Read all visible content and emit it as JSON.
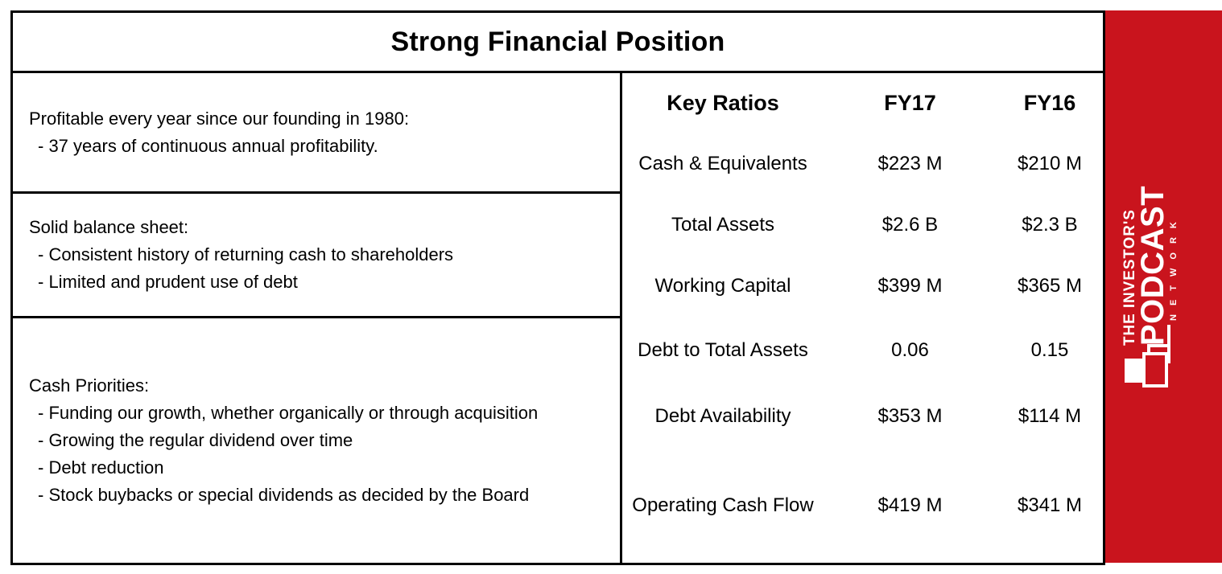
{
  "title": "Strong Financial Position",
  "left_sections": [
    {
      "heading": "Profitable every year since our founding in 1980:",
      "bullets": [
        "- 37 years of continuous annual profitability."
      ]
    },
    {
      "heading": "Solid balance sheet:",
      "bullets": [
        "- Consistent history of returning cash to shareholders",
        "- Limited and prudent use of debt"
      ]
    },
    {
      "heading": "Cash Priorities:",
      "bullets": [
        "- Funding our growth, whether organically or through acquisition",
        "- Growing the regular dividend over time",
        "- Debt reduction",
        "- Stock buybacks or special dividends as decided by the Board"
      ]
    }
  ],
  "table": {
    "headers": [
      "Key Ratios",
      "FY17",
      "FY16"
    ],
    "rows": [
      {
        "label": "Cash & Equivalents",
        "fy17": "$223 M",
        "fy16": "$210 M"
      },
      {
        "label": "Total Assets",
        "fy17": "$2.6 B",
        "fy16": "$2.3 B"
      },
      {
        "label": "Working Capital",
        "fy17": "$399 M",
        "fy16": "$365 M"
      },
      {
        "label": "Debt to Total Assets",
        "fy17": "0.06",
        "fy16": "0.15"
      },
      {
        "label": "Debt Availability",
        "fy17": "$353 M",
        "fy16": "$114 M"
      },
      {
        "label": "Operating Cash Flow",
        "fy17": "$419 M",
        "fy16": "$341 M"
      }
    ]
  },
  "logo": {
    "line1": "THE INVESTOR'S",
    "line2": "PODCAST",
    "line3": "NETWORK"
  },
  "colors": {
    "brand_red": "#c9141d",
    "border": "#000000"
  }
}
